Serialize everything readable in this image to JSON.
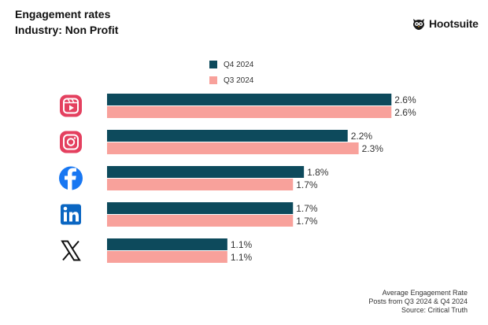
{
  "header": {
    "title": "Engagement rates",
    "subtitle": "Industry: Non Profit"
  },
  "brand": {
    "name": "Hootsuite",
    "icon": "owl-logo-icon"
  },
  "colors": {
    "q4": "#0d4a5c",
    "q3": "#f8a19b"
  },
  "chart_data": {
    "type": "bar",
    "orientation": "horizontal",
    "categories": [
      "Instagram Reels",
      "Instagram",
      "Facebook",
      "LinkedIn",
      "X"
    ],
    "category_icons": [
      "instagram-reels-icon",
      "instagram-icon",
      "facebook-icon",
      "linkedin-icon",
      "x-icon"
    ],
    "series": [
      {
        "name": "Q4 2024",
        "values": [
          2.6,
          2.2,
          1.8,
          1.7,
          1.1
        ],
        "labels": [
          "2.6%",
          "2.2%",
          "1.8%",
          "1.7%",
          "1.1%"
        ]
      },
      {
        "name": "Q3 2024",
        "values": [
          2.6,
          2.3,
          1.7,
          1.7,
          1.1
        ],
        "labels": [
          "2.6%",
          "2.3%",
          "1.7%",
          "1.7%",
          "1.1%"
        ]
      }
    ],
    "xlim": [
      0,
      2.9
    ],
    "grid": false,
    "legend": "top-center"
  },
  "footer": {
    "line1": "Average Engagement Rate",
    "line2": "Posts from Q3 2024 & Q4 2024",
    "line3": "Source: Critical Truth"
  }
}
